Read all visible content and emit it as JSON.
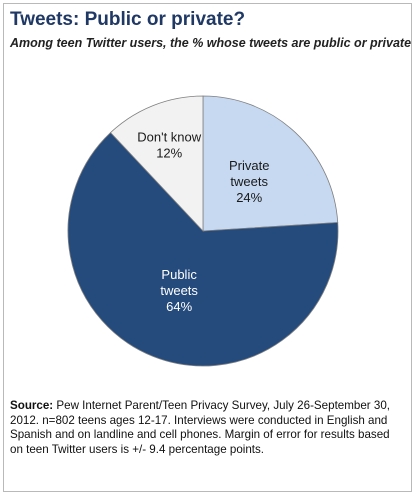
{
  "header": {
    "title": "Tweets: Public or private?",
    "subtitle": "Among teen Twitter users, the % whose tweets are public or private"
  },
  "chart_data": {
    "type": "pie",
    "slices": [
      {
        "label_lines": [
          "Private",
          "tweets"
        ],
        "value": 24,
        "value_label": "24%",
        "color": "#c6d9f1",
        "text_color": "#1a1a1a"
      },
      {
        "label_lines": [
          "Public",
          "tweets"
        ],
        "value": 64,
        "value_label": "64%",
        "color": "#254a7c",
        "text_color": "#ffffff"
      },
      {
        "label_lines": [
          "Don't know"
        ],
        "value": 12,
        "value_label": "12%",
        "color": "#f2f2f2",
        "text_color": "#1a1a1a"
      }
    ],
    "start_angle_deg": 0,
    "direction": "clockwise",
    "edge_color": "#7f7f7f"
  },
  "footer": {
    "source_label": "Source:",
    "source_text": " Pew Internet Parent/Teen Privacy Survey, July 26-September 30, 2012. n=802 teens ages 12-17.  Interviews were conducted in English and Spanish and on landline and cell phones. Margin of error for results based on teen Twitter users is +/- 9.4 percentage points."
  }
}
